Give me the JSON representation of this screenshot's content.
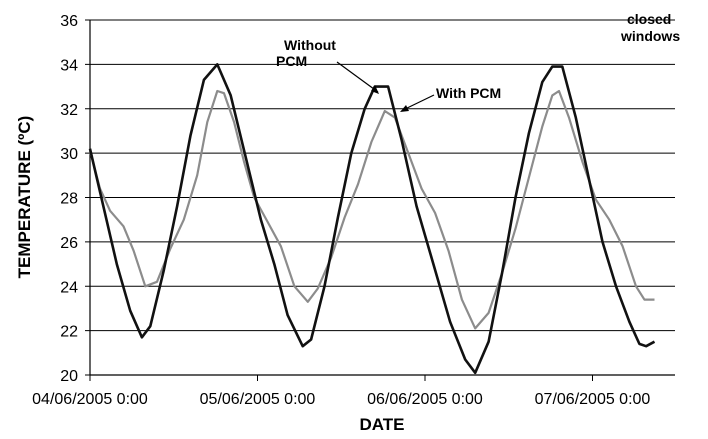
{
  "chart_data": {
    "type": "line",
    "xlabel": "DATE",
    "ylabel": "TEMPERATURE (ºC)",
    "ylim": [
      20,
      36
    ],
    "yticks": [
      20,
      22,
      24,
      26,
      28,
      30,
      32,
      34,
      36
    ],
    "grid": "horizontal",
    "legend": "none",
    "x_tick_labels": [
      "04/06/2005 0:00",
      "05/06/2005 0:00",
      "06/06/2005 0:00",
      "07/06/2005 0:00"
    ],
    "x_unit": "days since 04/06/2005 0:00",
    "xlim": [
      0,
      3.4
    ],
    "annotations": {
      "without_pcm": [
        "Without",
        "PCM"
      ],
      "with_pcm": "With PCM",
      "closed_windows": [
        "closed",
        "windows"
      ]
    },
    "series": [
      {
        "name": "Without PCM",
        "color": "#111111",
        "points": [
          [
            0.0,
            30.2
          ],
          [
            0.08,
            27.6
          ],
          [
            0.16,
            25.0
          ],
          [
            0.24,
            22.9
          ],
          [
            0.31,
            21.7
          ],
          [
            0.36,
            22.2
          ],
          [
            0.44,
            24.7
          ],
          [
            0.52,
            27.6
          ],
          [
            0.6,
            30.8
          ],
          [
            0.68,
            33.3
          ],
          [
            0.76,
            34.0
          ],
          [
            0.84,
            32.6
          ],
          [
            0.93,
            29.8
          ],
          [
            1.02,
            27.0
          ],
          [
            1.1,
            25.0
          ],
          [
            1.18,
            22.7
          ],
          [
            1.27,
            21.3
          ],
          [
            1.32,
            21.6
          ],
          [
            1.4,
            24.0
          ],
          [
            1.48,
            27.1
          ],
          [
            1.56,
            30.0
          ],
          [
            1.64,
            32.0
          ],
          [
            1.7,
            33.0
          ],
          [
            1.78,
            33.0
          ],
          [
            1.86,
            30.6
          ],
          [
            1.95,
            27.6
          ],
          [
            2.05,
            25.0
          ],
          [
            2.15,
            22.4
          ],
          [
            2.24,
            20.7
          ],
          [
            2.3,
            20.1
          ],
          [
            2.38,
            21.5
          ],
          [
            2.46,
            24.6
          ],
          [
            2.54,
            28.0
          ],
          [
            2.62,
            30.9
          ],
          [
            2.7,
            33.2
          ],
          [
            2.76,
            33.9
          ],
          [
            2.82,
            33.9
          ],
          [
            2.9,
            31.6
          ],
          [
            2.98,
            28.8
          ],
          [
            3.06,
            26.0
          ],
          [
            3.14,
            24.0
          ],
          [
            3.22,
            22.4
          ],
          [
            3.28,
            21.4
          ],
          [
            3.32,
            21.3
          ],
          [
            3.37,
            21.5
          ]
        ]
      },
      {
        "name": "With PCM",
        "color": "#8c8c8c",
        "points": [
          [
            0.0,
            30.1
          ],
          [
            0.06,
            28.4
          ],
          [
            0.12,
            27.4
          ],
          [
            0.2,
            26.7
          ],
          [
            0.26,
            25.6
          ],
          [
            0.33,
            24.0
          ],
          [
            0.4,
            24.2
          ],
          [
            0.48,
            25.7
          ],
          [
            0.56,
            27.0
          ],
          [
            0.64,
            29.0
          ],
          [
            0.7,
            31.4
          ],
          [
            0.76,
            32.8
          ],
          [
            0.8,
            32.7
          ],
          [
            0.86,
            31.4
          ],
          [
            0.92,
            29.6
          ],
          [
            0.98,
            28.0
          ],
          [
            1.06,
            26.9
          ],
          [
            1.14,
            25.8
          ],
          [
            1.22,
            24.0
          ],
          [
            1.3,
            23.3
          ],
          [
            1.36,
            23.9
          ],
          [
            1.44,
            25.3
          ],
          [
            1.52,
            27.1
          ],
          [
            1.6,
            28.6
          ],
          [
            1.68,
            30.5
          ],
          [
            1.76,
            31.9
          ],
          [
            1.82,
            31.6
          ],
          [
            1.9,
            30.0
          ],
          [
            1.98,
            28.4
          ],
          [
            2.06,
            27.3
          ],
          [
            2.14,
            25.6
          ],
          [
            2.22,
            23.4
          ],
          [
            2.3,
            22.1
          ],
          [
            2.38,
            22.8
          ],
          [
            2.46,
            24.6
          ],
          [
            2.54,
            26.6
          ],
          [
            2.62,
            28.9
          ],
          [
            2.7,
            31.2
          ],
          [
            2.76,
            32.6
          ],
          [
            2.8,
            32.8
          ],
          [
            2.86,
            31.6
          ],
          [
            2.94,
            29.6
          ],
          [
            3.02,
            27.9
          ],
          [
            3.1,
            27.0
          ],
          [
            3.18,
            25.8
          ],
          [
            3.26,
            24.0
          ],
          [
            3.31,
            23.4
          ],
          [
            3.37,
            23.4
          ]
        ]
      }
    ]
  }
}
